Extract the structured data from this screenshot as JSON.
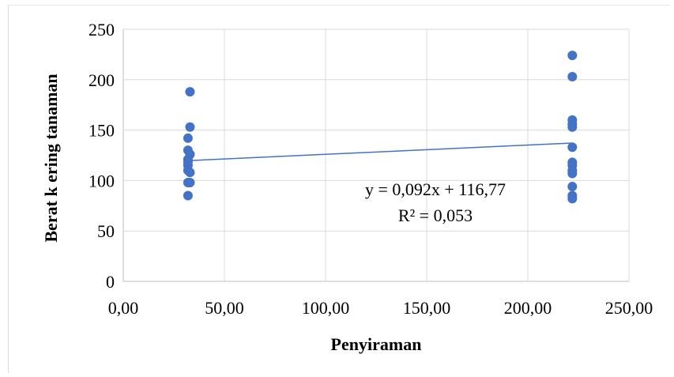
{
  "chart_data": {
    "type": "scatter",
    "title": "",
    "xlabel": "Penyiraman",
    "ylabel": "Berat k ering tanaman",
    "xlim": [
      0,
      250
    ],
    "ylim": [
      0,
      250
    ],
    "x_ticks": [
      "0,00",
      "50,00",
      "100,00",
      "150,00",
      "200,00",
      "250,00"
    ],
    "y_ticks": [
      "0",
      "50",
      "100",
      "150",
      "200",
      "250"
    ],
    "grid": true,
    "legend": "none",
    "marker_color": "#4472c4",
    "trendline_color": "#4472c4",
    "points": [
      {
        "x": 33,
        "y": 188
      },
      {
        "x": 33,
        "y": 153
      },
      {
        "x": 32,
        "y": 142
      },
      {
        "x": 32,
        "y": 130
      },
      {
        "x": 33,
        "y": 126
      },
      {
        "x": 32,
        "y": 121
      },
      {
        "x": 32,
        "y": 118
      },
      {
        "x": 32,
        "y": 115
      },
      {
        "x": 32,
        "y": 110
      },
      {
        "x": 33,
        "y": 108
      },
      {
        "x": 32,
        "y": 98
      },
      {
        "x": 33,
        "y": 98
      },
      {
        "x": 32,
        "y": 85
      },
      {
        "x": 222,
        "y": 224
      },
      {
        "x": 222,
        "y": 203
      },
      {
        "x": 222,
        "y": 160
      },
      {
        "x": 222,
        "y": 156
      },
      {
        "x": 222,
        "y": 153
      },
      {
        "x": 222,
        "y": 133
      },
      {
        "x": 222,
        "y": 118
      },
      {
        "x": 222,
        "y": 115
      },
      {
        "x": 222,
        "y": 110
      },
      {
        "x": 222,
        "y": 107
      },
      {
        "x": 222,
        "y": 94
      },
      {
        "x": 222,
        "y": 85
      },
      {
        "x": 222,
        "y": 82
      }
    ],
    "trendline": {
      "slope": 0.092,
      "intercept": 116.77,
      "x_range": [
        32,
        222
      ],
      "equation": "y = 0,092x + 116,77",
      "r_squared": "R² = 0,053"
    }
  }
}
